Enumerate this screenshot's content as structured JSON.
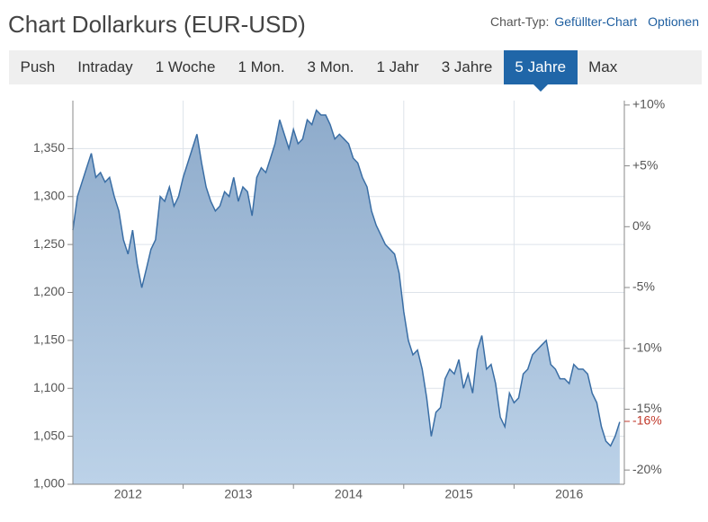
{
  "header": {
    "title": "Chart Dollarkurs (EUR-USD)",
    "chart_type_label": "Chart-Typ:",
    "chart_type": "Gefüllter-Chart",
    "options": "Optionen"
  },
  "tabs": [
    {
      "label": "Push"
    },
    {
      "label": "Intraday"
    },
    {
      "label": "1 Woche"
    },
    {
      "label": "1 Mon."
    },
    {
      "label": "3 Mon."
    },
    {
      "label": "1 Jahr"
    },
    {
      "label": "3 Jahre"
    },
    {
      "label": "5 Jahre",
      "active": true
    },
    {
      "label": "Max"
    }
  ],
  "chart_data": {
    "type": "area",
    "color": "#3a6ea5",
    "xlim": [
      2012,
      2017
    ],
    "xticks": [
      {
        "value": 2012.5,
        "label": "2012"
      },
      {
        "value": 2013.5,
        "label": "2013"
      },
      {
        "value": 2014.5,
        "label": "2014"
      },
      {
        "value": 2015.5,
        "label": "2015"
      },
      {
        "value": 2016.5,
        "label": "2016"
      }
    ],
    "xgrid": [
      2013,
      2014,
      2015,
      2016
    ],
    "ylim": [
      1.0,
      1.4
    ],
    "yticks": [
      {
        "value": 1.0,
        "label": "1,000"
      },
      {
        "value": 1.05,
        "label": "1,050"
      },
      {
        "value": 1.1,
        "label": "1,100"
      },
      {
        "value": 1.15,
        "label": "1,150"
      },
      {
        "value": 1.2,
        "label": "1,200"
      },
      {
        "value": 1.25,
        "label": "1,250"
      },
      {
        "value": 1.3,
        "label": "1,300"
      },
      {
        "value": 1.35,
        "label": "1,350"
      }
    ],
    "y2lim": [
      -21.17,
      10.36
    ],
    "y2ticks": [
      {
        "value": 10,
        "label": "+10%"
      },
      {
        "value": 5,
        "label": "+5%"
      },
      {
        "value": 0,
        "label": "0%"
      },
      {
        "value": -5,
        "label": "-5%"
      },
      {
        "value": -10,
        "label": "-10%"
      },
      {
        "value": -15,
        "label": "-15%"
      },
      {
        "value": -20,
        "label": "-20%"
      }
    ],
    "current": {
      "value": -16,
      "label": "-16%",
      "color": "#c0392b"
    },
    "grid": true,
    "x": [
      2012,
      2012.042,
      2012.083,
      2012.125,
      2012.167,
      2012.208,
      2012.25,
      2012.292,
      2012.333,
      2012.375,
      2012.417,
      2012.458,
      2012.5,
      2012.542,
      2012.583,
      2012.625,
      2012.667,
      2012.708,
      2012.75,
      2012.792,
      2012.833,
      2012.875,
      2012.917,
      2012.958,
      2013,
      2013.042,
      2013.083,
      2013.125,
      2013.167,
      2013.208,
      2013.25,
      2013.292,
      2013.333,
      2013.375,
      2013.417,
      2013.458,
      2013.5,
      2013.542,
      2013.583,
      2013.625,
      2013.667,
      2013.708,
      2013.75,
      2013.792,
      2013.833,
      2013.875,
      2013.917,
      2013.958,
      2014,
      2014.042,
      2014.083,
      2014.125,
      2014.167,
      2014.208,
      2014.25,
      2014.292,
      2014.333,
      2014.375,
      2014.417,
      2014.458,
      2014.5,
      2014.542,
      2014.583,
      2014.625,
      2014.667,
      2014.708,
      2014.75,
      2014.792,
      2014.833,
      2014.875,
      2014.917,
      2014.958,
      2015,
      2015.042,
      2015.083,
      2015.125,
      2015.167,
      2015.208,
      2015.25,
      2015.292,
      2015.333,
      2015.375,
      2015.417,
      2015.458,
      2015.5,
      2015.542,
      2015.583,
      2015.625,
      2015.667,
      2015.708,
      2015.75,
      2015.792,
      2015.833,
      2015.875,
      2015.917,
      2015.958,
      2016,
      2016.042,
      2016.083,
      2016.125,
      2016.167,
      2016.208,
      2016.25,
      2016.292,
      2016.333,
      2016.375,
      2016.417,
      2016.458,
      2016.5,
      2016.542,
      2016.583,
      2016.625,
      2016.667,
      2016.708,
      2016.75,
      2016.792,
      2016.833,
      2016.875,
      2016.917,
      2016.958
    ],
    "values": [
      1.265,
      1.3,
      1.315,
      1.33,
      1.345,
      1.32,
      1.325,
      1.315,
      1.32,
      1.3,
      1.285,
      1.255,
      1.24,
      1.265,
      1.23,
      1.205,
      1.225,
      1.245,
      1.255,
      1.3,
      1.295,
      1.31,
      1.29,
      1.3,
      1.32,
      1.335,
      1.35,
      1.365,
      1.335,
      1.31,
      1.295,
      1.285,
      1.29,
      1.305,
      1.3,
      1.32,
      1.295,
      1.31,
      1.305,
      1.28,
      1.32,
      1.33,
      1.325,
      1.34,
      1.355,
      1.38,
      1.365,
      1.35,
      1.37,
      1.355,
      1.36,
      1.38,
      1.375,
      1.39,
      1.385,
      1.385,
      1.375,
      1.36,
      1.365,
      1.36,
      1.355,
      1.34,
      1.335,
      1.32,
      1.31,
      1.285,
      1.27,
      1.26,
      1.25,
      1.245,
      1.24,
      1.22,
      1.18,
      1.15,
      1.135,
      1.14,
      1.12,
      1.09,
      1.05,
      1.075,
      1.08,
      1.11,
      1.12,
      1.115,
      1.13,
      1.1,
      1.115,
      1.095,
      1.14,
      1.155,
      1.12,
      1.125,
      1.105,
      1.07,
      1.06,
      1.095,
      1.085,
      1.09,
      1.115,
      1.12,
      1.135,
      1.14,
      1.145,
      1.15,
      1.125,
      1.12,
      1.11,
      1.11,
      1.105,
      1.125,
      1.12,
      1.12,
      1.115,
      1.095,
      1.085,
      1.06,
      1.045,
      1.04,
      1.05,
      1.065
    ]
  }
}
